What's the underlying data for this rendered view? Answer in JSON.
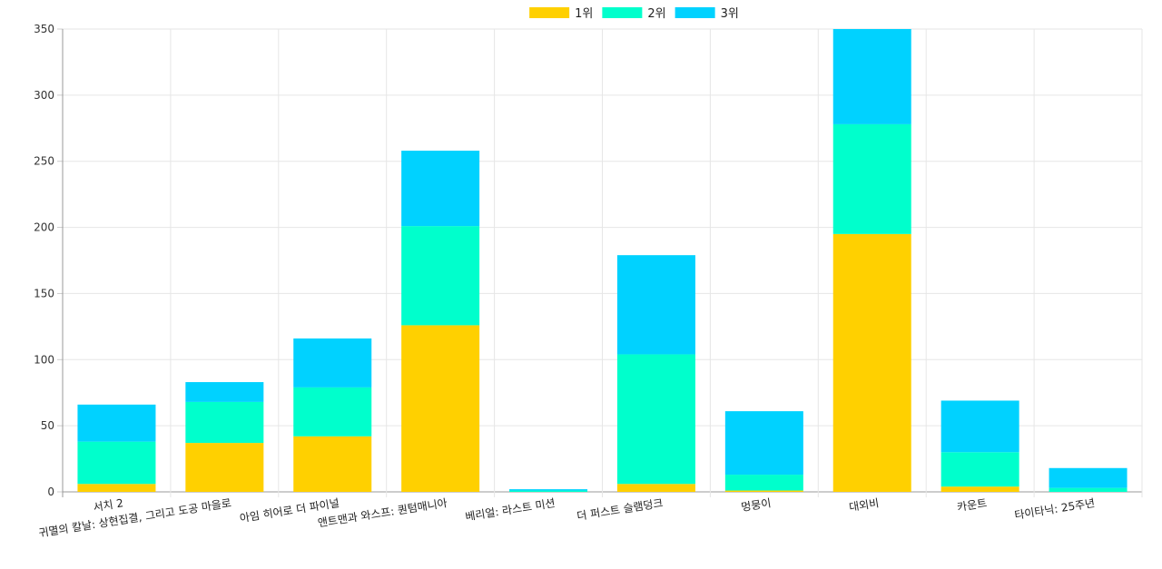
{
  "chart_data": {
    "type": "bar",
    "stacked": true,
    "categories": [
      "서치 2",
      "귀멸의 칼날: 상현집결, 그리고 도공 마을로",
      "아임 히어로 더 파이널",
      "앤트맨과 와스프: 퀀텀매니아",
      "베리얼: 라스트 미션",
      "더 퍼스트 슬램덩크",
      "멍뭉이",
      "대외비",
      "카운트",
      "타이타닉: 25주년"
    ],
    "series": [
      {
        "name": "1위",
        "color": "#ffd000",
        "values": [
          6,
          37,
          42,
          126,
          0,
          6,
          1,
          195,
          4,
          0
        ]
      },
      {
        "name": "2위",
        "color": "#00ffcc",
        "values": [
          32,
          31,
          37,
          75,
          1,
          98,
          12,
          83,
          26,
          3
        ]
      },
      {
        "name": "3위",
        "color": "#00d2ff",
        "values": [
          28,
          15,
          37,
          57,
          1,
          75,
          48,
          72,
          39,
          15
        ]
      }
    ],
    "yticks": [
      0,
      50,
      100,
      150,
      200,
      250,
      300,
      350
    ],
    "ylim": [
      0,
      350
    ],
    "grid": true,
    "legend_position": "top"
  }
}
